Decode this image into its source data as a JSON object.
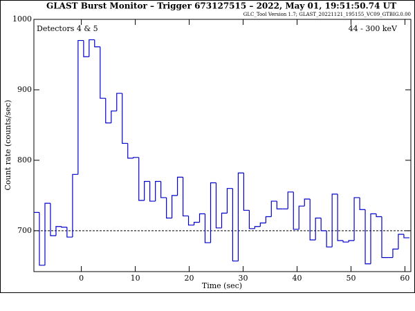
{
  "chart_data": {
    "type": "histogram",
    "title": "GLAST Burst Monitor  –  Trigger 673127515  –  2022, May 01, 19:51:50.74 UT",
    "subtitle": "GLC_Tool Version 1.7; GLAST_20221121_195155_VC09_GTBIG.0.00",
    "annotations": [
      "Detectors 4 & 5",
      "44 - 300 keV"
    ],
    "x_label": "Time (sec)",
    "y_label": "Count rate (counts/sec)",
    "bins": [
      -8.8,
      -7.78,
      -6.75,
      -5.73,
      -4.7,
      -3.68,
      -2.66,
      -1.63,
      -0.61,
      0.42,
      1.44,
      2.46,
      3.49,
      4.51,
      5.54,
      6.56,
      7.58,
      8.61,
      9.63,
      10.66,
      11.68,
      12.7,
      13.73,
      14.75,
      15.78,
      16.8,
      17.82,
      18.85,
      19.87,
      20.9,
      21.92,
      22.94,
      23.97,
      24.99,
      26.02,
      27.04,
      28.06,
      29.09,
      30.11,
      31.14,
      32.16,
      33.18,
      34.21,
      35.23,
      36.26,
      37.28,
      38.3,
      39.33,
      40.35,
      41.38,
      42.4,
      43.42,
      44.45,
      45.47,
      46.5,
      47.52,
      48.54,
      49.57,
      50.59,
      51.62,
      52.64,
      53.66,
      54.69,
      55.71,
      56.74,
      57.76,
      58.78,
      59.81,
      60.83
    ],
    "values": [
      726,
      651,
      739,
      693,
      706,
      705,
      691,
      780,
      970,
      947,
      971,
      961,
      888,
      853,
      870,
      895,
      824,
      803,
      804,
      743,
      770,
      742,
      770,
      747,
      718,
      750,
      776,
      721,
      708,
      712,
      724,
      683,
      768,
      704,
      725,
      760,
      657,
      782,
      729,
      703,
      706,
      711,
      720,
      742,
      731,
      731,
      755,
      702,
      735,
      745,
      687,
      718,
      700,
      677,
      752,
      686,
      684,
      686,
      747,
      730,
      653,
      724,
      720,
      662,
      662,
      674,
      695,
      690
    ],
    "color": "#0000cc",
    "reference_line": 700,
    "xlim": [
      -8.8,
      61.1
    ],
    "xticks": [
      0,
      10,
      20,
      30,
      40,
      50,
      60
    ],
    "ylim": [
      642,
      1000
    ],
    "yticks": [
      700,
      800,
      900,
      1000
    ]
  }
}
